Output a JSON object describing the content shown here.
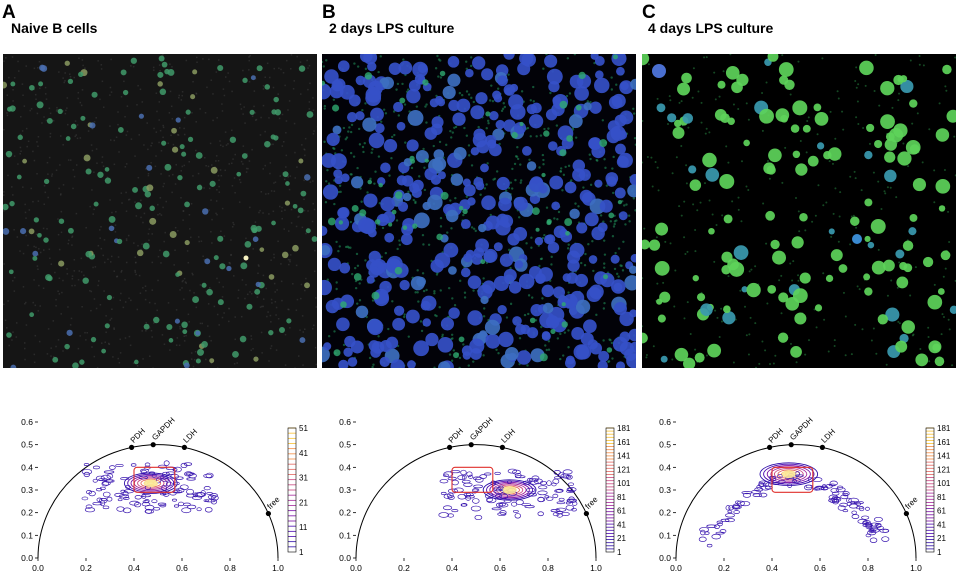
{
  "panels": [
    {
      "letter": "A",
      "title": "Naive B cells",
      "image_bg": "#151515",
      "colorbar_ticks": [
        "51",
        "41",
        "31",
        "21",
        "11",
        "1"
      ],
      "colormap": "plasma-contour",
      "roi_box_color": "#e0312c"
    },
    {
      "letter": "B",
      "title": "2 days LPS culture",
      "image_bg": "#020208",
      "colorbar_ticks": [
        "181",
        "161",
        "141",
        "121",
        "101",
        "81",
        "61",
        "41",
        "21",
        "1"
      ],
      "colormap": "plasma-contour",
      "roi_box_color": "#e0312c"
    },
    {
      "letter": "C",
      "title": "4 days LPS culture",
      "image_bg": "#000000",
      "colorbar_ticks": [
        "181",
        "161",
        "141",
        "121",
        "101",
        "81",
        "61",
        "41",
        "21",
        "1"
      ],
      "colormap": "plasma-contour",
      "roi_box_color": "#e0312c"
    }
  ],
  "phasor_axes": {
    "xticks": [
      "0.0",
      "0.2",
      "0.4",
      "0.6",
      "0.8",
      "1.0"
    ],
    "yticks": [
      "0.0",
      "0.1",
      "0.2",
      "0.3",
      "0.4",
      "0.5",
      "0.6"
    ],
    "xlim": [
      0,
      1
    ],
    "ylim": [
      0,
      0.6
    ],
    "reference_labels": [
      "PDH",
      "GAPDH",
      "LDH",
      "free"
    ]
  },
  "chart_data": [
    {
      "type": "scatter",
      "xlim": [
        0,
        1
      ],
      "ylim": [
        0,
        0.6
      ],
      "universal_circle": true,
      "reference_points": [
        {
          "label": "PDH",
          "x": 0.39,
          "y": 0.488
        },
        {
          "label": "GAPDH",
          "x": 0.48,
          "y": 0.5
        },
        {
          "label": "LDH",
          "x": 0.61,
          "y": 0.488
        },
        {
          "label": "free",
          "x": 0.96,
          "y": 0.196
        }
      ],
      "density_peak": {
        "x": 0.47,
        "y": 0.33
      },
      "density_max": 51
    },
    {
      "type": "scatter",
      "xlim": [
        0,
        1
      ],
      "ylim": [
        0,
        0.6
      ],
      "universal_circle": true,
      "reference_points": [
        {
          "label": "PDH",
          "x": 0.39,
          "y": 0.488
        },
        {
          "label": "GAPDH",
          "x": 0.48,
          "y": 0.5
        },
        {
          "label": "LDH",
          "x": 0.61,
          "y": 0.488
        },
        {
          "label": "free",
          "x": 0.96,
          "y": 0.196
        }
      ],
      "density_peak": {
        "x": 0.64,
        "y": 0.3
      },
      "density_max": 181
    },
    {
      "type": "scatter",
      "xlim": [
        0,
        1
      ],
      "ylim": [
        0,
        0.6
      ],
      "universal_circle": true,
      "reference_points": [
        {
          "label": "PDH",
          "x": 0.39,
          "y": 0.488
        },
        {
          "label": "GAPDH",
          "x": 0.48,
          "y": 0.5
        },
        {
          "label": "LDH",
          "x": 0.61,
          "y": 0.488
        },
        {
          "label": "free",
          "x": 0.96,
          "y": 0.196
        }
      ],
      "density_peak": {
        "x": 0.47,
        "y": 0.37
      },
      "density_max": 181
    }
  ]
}
